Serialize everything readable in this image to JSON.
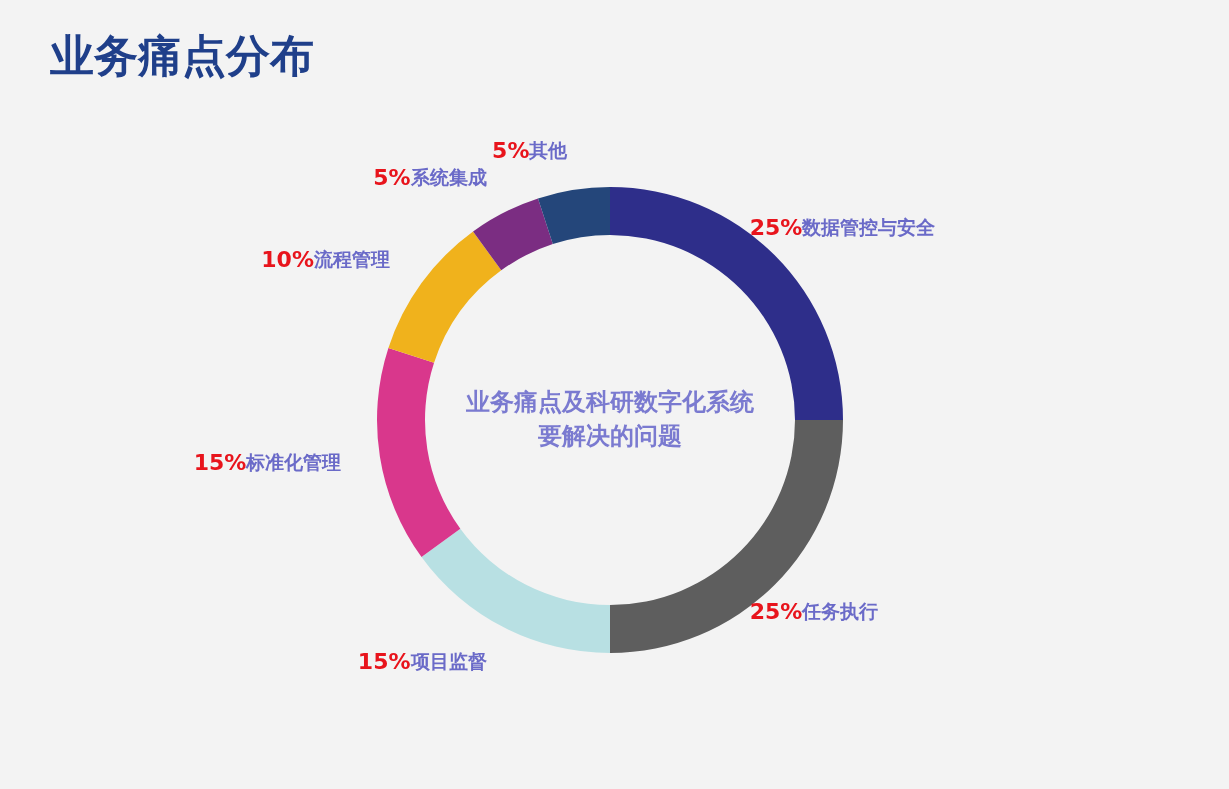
{
  "chart_data": {
    "type": "donut",
    "title": "业务痛点分布",
    "categories": [
      "数据管控与安全",
      "任务执行",
      "项目监督",
      "标准化管理",
      "流程管理",
      "系统集成",
      "其他"
    ],
    "values": [
      25,
      25,
      15,
      15,
      10,
      5,
      5
    ],
    "value_labels": [
      "25%",
      "25%",
      "15%",
      "15%",
      "10%",
      "5%",
      "5%"
    ],
    "colors": [
      "#2e2e8a",
      "#5e5e5e",
      "#b8e0e3",
      "#d9378c",
      "#f0b21c",
      "#7b2d82",
      "#24467a"
    ],
    "annotations": [
      "业务痛点及科研数字化系统",
      "要解决的问题"
    ]
  }
}
